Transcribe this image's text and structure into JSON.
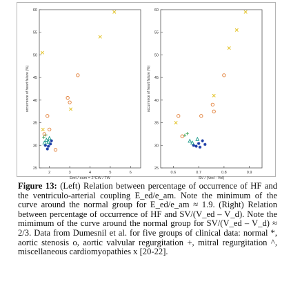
{
  "figure": {
    "caption_label": "Figure 13:",
    "caption_text": " (Left) Relation between percentage of occurrence of HF and the ventriculo-arterial coupling E_ed/e_am. Note the minimum of the curve around the normal group for E_ed/e_am ≈ 1.9. (Right) Relation between percentage of occurrence of HF and SV/(V_ed – V_d). Note the mimimum of the curve around the normal group for SV/(V_ed – V_d) ≈ 2/3. Data from Dumesnil et al. for five groups of clinical data: normal *, aortic stenosis o, aortic valvular regurgitation +, mitral regurgitation ^, miscellaneous cardiomyopathies x [20-22]."
  },
  "chart_data": [
    {
      "type": "scatter",
      "xlabel": "Emt / eam = 2*CW / TW",
      "ylabel": "occurrence of heart failure (%)",
      "xlim": [
        1.5,
        6.5
      ],
      "ylim": [
        25,
        60
      ],
      "xticks": [
        2,
        3,
        4,
        5,
        6
      ],
      "yticks": [
        25,
        30,
        35,
        40,
        45,
        50,
        55,
        60
      ],
      "grid": false,
      "series": [
        {
          "marker": "*",
          "color": "#1f3fa8",
          "points": [
            [
              1.8,
              30.0
            ],
            [
              1.95,
              29.8
            ],
            [
              2.05,
              30.3
            ],
            [
              1.9,
              29.2
            ],
            [
              2.1,
              31.0
            ]
          ]
        },
        {
          "marker": "^",
          "color": "#1a9a8a",
          "points": [
            [
              1.75,
              30.6
            ],
            [
              1.85,
              31.2
            ],
            [
              1.95,
              30.8
            ],
            [
              2.0,
              31.6
            ]
          ]
        },
        {
          "marker": "+",
          "color": "#4aa860",
          "points": [
            [
              1.72,
              31.8
            ],
            [
              1.82,
              32.3
            ]
          ]
        },
        {
          "marker": "o",
          "color": "#e07a30",
          "points": [
            [
              1.9,
              36.5
            ],
            [
              2.0,
              33.5
            ],
            [
              2.3,
              29.0
            ],
            [
              2.9,
              40.5
            ],
            [
              3.0,
              39.5
            ],
            [
              3.4,
              45.5
            ],
            [
              1.75,
              32.5
            ]
          ]
        },
        {
          "marker": "x",
          "color": "#e3c32a",
          "points": [
            [
              1.68,
              33.5
            ],
            [
              1.65,
              50.5
            ],
            [
              3.05,
              38.0
            ],
            [
              4.5,
              54.0
            ],
            [
              5.2,
              59.5
            ]
          ]
        }
      ]
    },
    {
      "type": "scatter",
      "xlabel": "SV / (Ved - Vol)",
      "ylabel": "occurrence of heart failure (%)",
      "xlim": [
        0.55,
        0.95
      ],
      "ylim": [
        25,
        60
      ],
      "xticks": [
        0.6,
        0.7,
        0.8,
        0.9
      ],
      "yticks": [
        25,
        30,
        35,
        40,
        45,
        50,
        55,
        60
      ],
      "grid": false,
      "series": [
        {
          "marker": "*",
          "color": "#1f3fa8",
          "points": [
            [
              0.68,
              30.0
            ],
            [
              0.69,
              29.8
            ],
            [
              0.7,
              30.4
            ],
            [
              0.705,
              29.6
            ],
            [
              0.715,
              31.0
            ],
            [
              0.725,
              30.2
            ]
          ]
        },
        {
          "marker": "^",
          "color": "#1a9a8a",
          "points": [
            [
              0.665,
              31.0
            ],
            [
              0.675,
              30.6
            ],
            [
              0.695,
              31.4
            ]
          ]
        },
        {
          "marker": "+",
          "color": "#4aa860",
          "points": [
            [
              0.655,
              32.6
            ],
            [
              0.645,
              32.2
            ]
          ]
        },
        {
          "marker": "o",
          "color": "#e07a30",
          "points": [
            [
              0.62,
              36.5
            ],
            [
              0.635,
              32.0
            ],
            [
              0.71,
              36.5
            ],
            [
              0.755,
              39.0
            ],
            [
              0.76,
              37.5
            ],
            [
              0.8,
              45.5
            ]
          ]
        },
        {
          "marker": "x",
          "color": "#e3c32a",
          "points": [
            [
              0.61,
              35.0
            ],
            [
              0.76,
              41.0
            ],
            [
              0.82,
              51.5
            ],
            [
              0.85,
              55.5
            ],
            [
              0.885,
              59.5
            ]
          ]
        }
      ]
    }
  ]
}
